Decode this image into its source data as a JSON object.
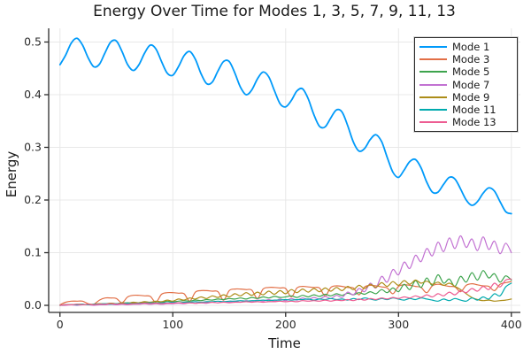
{
  "figure": {
    "title": "Energy Over Time for Modes 1, 3, 5, 7, 9, 11, 13",
    "xlabel": "Time",
    "ylabel": "Energy"
  },
  "chart_data": {
    "type": "line",
    "title": "Energy Over Time for Modes 1, 3, 5, 7, 9, 11, 13",
    "xlabel": "Time",
    "ylabel": "Energy",
    "xlim": [
      -10,
      408
    ],
    "ylim": [
      -0.0134,
      0.526
    ],
    "xticks": [
      0,
      100,
      200,
      300,
      400
    ],
    "xtick_labels": [
      "0",
      "100",
      "200",
      "300",
      "400"
    ],
    "yticks": [
      0,
      0.1,
      0.2,
      0.3,
      0.4,
      0.5
    ],
    "ytick_labels": [
      "0.0",
      "0.1",
      "0.2",
      "0.3",
      "0.4",
      "0.5"
    ],
    "grid": true,
    "legend_position": "top-right",
    "background": "#ffffff",
    "grid_color": "#e8e8e8",
    "axis_color": "#2b2b2b",
    "x": [
      0,
      5,
      10,
      15,
      20,
      25,
      30,
      35,
      40,
      45,
      50,
      55,
      60,
      65,
      70,
      75,
      80,
      85,
      90,
      95,
      100,
      105,
      110,
      115,
      120,
      125,
      130,
      135,
      140,
      145,
      150,
      155,
      160,
      165,
      170,
      175,
      180,
      185,
      190,
      195,
      200,
      205,
      210,
      215,
      220,
      225,
      230,
      235,
      240,
      245,
      250,
      255,
      260,
      265,
      270,
      275,
      280,
      285,
      290,
      295,
      300,
      305,
      310,
      315,
      320,
      325,
      330,
      335,
      340,
      345,
      350,
      355,
      360,
      365,
      370,
      375,
      380,
      385,
      390,
      395,
      400
    ],
    "series": [
      {
        "name": "Mode 1",
        "color": "#009AFA",
        "line_width": 1.8,
        "values": [
          0.457,
          0.475,
          0.498,
          0.507,
          0.494,
          0.47,
          0.453,
          0.458,
          0.48,
          0.5,
          0.502,
          0.482,
          0.457,
          0.446,
          0.457,
          0.479,
          0.494,
          0.487,
          0.463,
          0.441,
          0.437,
          0.453,
          0.474,
          0.482,
          0.467,
          0.44,
          0.421,
          0.424,
          0.445,
          0.463,
          0.463,
          0.441,
          0.414,
          0.4,
          0.409,
          0.43,
          0.443,
          0.434,
          0.408,
          0.383,
          0.377,
          0.389,
          0.407,
          0.411,
          0.392,
          0.362,
          0.34,
          0.339,
          0.356,
          0.371,
          0.367,
          0.341,
          0.31,
          0.293,
          0.298,
          0.315,
          0.324,
          0.311,
          0.281,
          0.253,
          0.243,
          0.257,
          0.273,
          0.277,
          0.261,
          0.234,
          0.215,
          0.215,
          0.23,
          0.243,
          0.24,
          0.221,
          0.2,
          0.19,
          0.197,
          0.213,
          0.223,
          0.217,
          0.197,
          0.178,
          0.174
        ]
      },
      {
        "name": "Mode 3",
        "color": "#E26F46",
        "line_width": 1.2,
        "values": [
          0.001,
          0.006,
          0.008,
          0.008,
          0.008,
          0.003,
          0.002,
          0.01,
          0.014,
          0.014,
          0.013,
          0.005,
          0.016,
          0.019,
          0.019,
          0.018,
          0.017,
          0.006,
          0.021,
          0.024,
          0.024,
          0.023,
          0.022,
          0.008,
          0.025,
          0.028,
          0.028,
          0.027,
          0.026,
          0.01,
          0.028,
          0.031,
          0.031,
          0.03,
          0.029,
          0.013,
          0.031,
          0.034,
          0.034,
          0.033,
          0.032,
          0.016,
          0.033,
          0.036,
          0.035,
          0.034,
          0.033,
          0.018,
          0.034,
          0.037,
          0.036,
          0.034,
          0.033,
          0.02,
          0.035,
          0.038,
          0.037,
          0.035,
          0.033,
          0.022,
          0.036,
          0.039,
          0.038,
          0.036,
          0.034,
          0.024,
          0.037,
          0.04,
          0.038,
          0.036,
          0.035,
          0.026,
          0.038,
          0.041,
          0.039,
          0.037,
          0.036,
          0.028,
          0.04,
          0.043,
          0.045
        ]
      },
      {
        "name": "Mode 5",
        "color": "#3DA44D",
        "line_width": 1.2,
        "values": [
          0.0,
          0.001,
          0.001,
          0.002,
          0.002,
          0.001,
          0.002,
          0.003,
          0.003,
          0.004,
          0.003,
          0.004,
          0.005,
          0.004,
          0.005,
          0.006,
          0.005,
          0.007,
          0.006,
          0.008,
          0.007,
          0.008,
          0.009,
          0.008,
          0.01,
          0.009,
          0.011,
          0.01,
          0.012,
          0.011,
          0.013,
          0.012,
          0.014,
          0.012,
          0.015,
          0.013,
          0.016,
          0.014,
          0.017,
          0.015,
          0.016,
          0.018,
          0.015,
          0.019,
          0.016,
          0.02,
          0.017,
          0.021,
          0.018,
          0.022,
          0.019,
          0.023,
          0.02,
          0.024,
          0.021,
          0.026,
          0.022,
          0.03,
          0.024,
          0.033,
          0.026,
          0.04,
          0.03,
          0.047,
          0.034,
          0.052,
          0.038,
          0.058,
          0.042,
          0.05,
          0.036,
          0.055,
          0.044,
          0.062,
          0.048,
          0.066,
          0.052,
          0.06,
          0.044,
          0.056,
          0.048
        ]
      },
      {
        "name": "Mode 7",
        "color": "#C271D2",
        "line_width": 1.2,
        "values": [
          0.0,
          0.0,
          0.001,
          0.0,
          0.001,
          0.001,
          0.0,
          0.001,
          0.001,
          0.002,
          0.001,
          0.002,
          0.001,
          0.002,
          0.002,
          0.003,
          0.002,
          0.003,
          0.002,
          0.003,
          0.003,
          0.004,
          0.003,
          0.005,
          0.004,
          0.005,
          0.004,
          0.006,
          0.005,
          0.007,
          0.006,
          0.008,
          0.006,
          0.009,
          0.007,
          0.01,
          0.008,
          0.011,
          0.008,
          0.012,
          0.009,
          0.013,
          0.01,
          0.014,
          0.011,
          0.015,
          0.012,
          0.017,
          0.013,
          0.019,
          0.015,
          0.025,
          0.02,
          0.032,
          0.026,
          0.042,
          0.033,
          0.055,
          0.044,
          0.068,
          0.058,
          0.082,
          0.07,
          0.095,
          0.083,
          0.108,
          0.094,
          0.12,
          0.102,
          0.128,
          0.108,
          0.132,
          0.11,
          0.126,
          0.104,
          0.13,
          0.106,
          0.122,
          0.098,
          0.118,
          0.1
        ]
      },
      {
        "name": "Mode 9",
        "color": "#AC8D18",
        "line_width": 1.2,
        "values": [
          0.0,
          0.001,
          0.001,
          0.002,
          0.001,
          0.002,
          0.002,
          0.003,
          0.002,
          0.004,
          0.003,
          0.005,
          0.004,
          0.006,
          0.005,
          0.007,
          0.006,
          0.008,
          0.007,
          0.01,
          0.008,
          0.012,
          0.01,
          0.014,
          0.012,
          0.016,
          0.013,
          0.018,
          0.015,
          0.02,
          0.016,
          0.022,
          0.018,
          0.024,
          0.019,
          0.025,
          0.02,
          0.027,
          0.021,
          0.028,
          0.022,
          0.03,
          0.024,
          0.031,
          0.025,
          0.032,
          0.026,
          0.033,
          0.027,
          0.034,
          0.028,
          0.036,
          0.03,
          0.038,
          0.032,
          0.04,
          0.034,
          0.043,
          0.036,
          0.045,
          0.038,
          0.047,
          0.04,
          0.048,
          0.042,
          0.046,
          0.04,
          0.044,
          0.038,
          0.042,
          0.036,
          0.03,
          0.022,
          0.015,
          0.011,
          0.009,
          0.01,
          0.008,
          0.009,
          0.01,
          0.012
        ]
      },
      {
        "name": "Mode 11",
        "color": "#00AAAE",
        "line_width": 1.2,
        "values": [
          0.0,
          0.001,
          0.001,
          0.001,
          0.002,
          0.001,
          0.002,
          0.002,
          0.003,
          0.002,
          0.003,
          0.003,
          0.004,
          0.003,
          0.004,
          0.004,
          0.005,
          0.004,
          0.005,
          0.005,
          0.006,
          0.005,
          0.006,
          0.006,
          0.007,
          0.006,
          0.007,
          0.007,
          0.008,
          0.007,
          0.008,
          0.008,
          0.009,
          0.008,
          0.009,
          0.009,
          0.01,
          0.009,
          0.01,
          0.01,
          0.011,
          0.01,
          0.011,
          0.011,
          0.012,
          0.01,
          0.012,
          0.011,
          0.013,
          0.011,
          0.012,
          0.01,
          0.013,
          0.011,
          0.014,
          0.012,
          0.01,
          0.013,
          0.011,
          0.014,
          0.012,
          0.01,
          0.013,
          0.011,
          0.014,
          0.012,
          0.01,
          0.008,
          0.012,
          0.009,
          0.013,
          0.01,
          0.008,
          0.014,
          0.01,
          0.016,
          0.012,
          0.022,
          0.018,
          0.035,
          0.042
        ]
      },
      {
        "name": "Mode 13",
        "color": "#ED5D92",
        "line_width": 1.2,
        "values": [
          0.0,
          0.001,
          0.001,
          0.002,
          0.001,
          0.002,
          0.001,
          0.002,
          0.002,
          0.003,
          0.002,
          0.003,
          0.002,
          0.003,
          0.003,
          0.004,
          0.003,
          0.004,
          0.003,
          0.004,
          0.004,
          0.005,
          0.004,
          0.005,
          0.004,
          0.005,
          0.005,
          0.006,
          0.005,
          0.006,
          0.005,
          0.006,
          0.006,
          0.007,
          0.006,
          0.007,
          0.006,
          0.007,
          0.007,
          0.008,
          0.007,
          0.008,
          0.007,
          0.009,
          0.008,
          0.009,
          0.008,
          0.01,
          0.008,
          0.01,
          0.009,
          0.011,
          0.009,
          0.012,
          0.01,
          0.013,
          0.011,
          0.014,
          0.012,
          0.015,
          0.013,
          0.016,
          0.014,
          0.018,
          0.015,
          0.02,
          0.016,
          0.022,
          0.018,
          0.025,
          0.02,
          0.028,
          0.024,
          0.032,
          0.027,
          0.036,
          0.03,
          0.042,
          0.035,
          0.048,
          0.05
        ]
      }
    ]
  }
}
